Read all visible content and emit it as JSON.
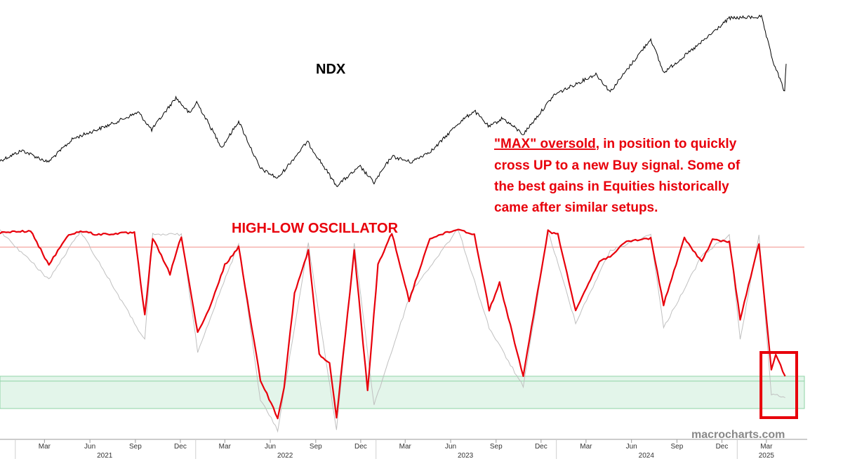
{
  "colors": {
    "ndx_line": "#000000",
    "oscillator_main": "#e8000b",
    "oscillator_secondary": "#c0c0c0",
    "overbought_line": "#f4a6a0",
    "oversold_zone_fill": "#e3f5ea",
    "oversold_zone_border": "#8fd3a6",
    "highlight_box": "#e8000b",
    "watermark": "#888888"
  },
  "chart_data": [
    {
      "type": "line",
      "title": "NDX",
      "x_range": [
        "2020-12",
        "2025-04"
      ],
      "series": [
        {
          "name": "",
          "x": [
            "2020-12-01",
            "2021-01-15",
            "2021-03-08",
            "2021-04-28",
            "2021-07-15",
            "2021-09-07",
            "2021-10-04",
            "2021-11-22",
            "2021-12-20",
            "2022-01-03",
            "2022-02-23",
            "2022-03-29",
            "2022-05-11",
            "2022-06-16",
            "2022-08-15",
            "2022-10-13",
            "2022-11-30",
            "2022-12-28",
            "2023-02-02",
            "2023-03-13",
            "2023-04-28",
            "2023-06-15",
            "2023-07-19",
            "2023-08-18",
            "2023-09-14",
            "2023-10-26",
            "2023-12-28",
            "2024-03-21",
            "2024-04-19",
            "2024-07-10",
            "2024-08-05",
            "2024-10-15",
            "2024-12-16",
            "2025-02-19",
            "2025-03-13",
            "2025-04-07",
            "2025-04-10"
          ],
          "y": [
            12400,
            13100,
            12300,
            13900,
            14900,
            15700,
            14500,
            16700,
            15600,
            16400,
            13300,
            15100,
            11900,
            11200,
            13700,
            10700,
            12000,
            10900,
            12700,
            12300,
            13200,
            14900,
            15800,
            14700,
            15300,
            14200,
            16900,
            18300,
            17100,
            20700,
            18400,
            20300,
            22100,
            22200,
            19300,
            17100,
            19000
          ]
        }
      ]
    },
    {
      "type": "line",
      "title": "HIGH-LOW OSCILLATOR",
      "x_range": [
        "2020-12",
        "2025-04"
      ],
      "series": [
        {
          "name": "",
          "x": [
            "2020-12-01",
            "2021-02-01",
            "2021-03-10",
            "2021-04-15",
            "2021-05-13",
            "2021-06-15",
            "2021-08-30",
            "2021-09-20",
            "2021-10-06",
            "2021-11-10",
            "2021-12-03",
            "2022-01-05",
            "2022-01-28",
            "2022-03-01",
            "2022-03-29",
            "2022-05-12",
            "2022-06-16",
            "2022-06-29",
            "2022-07-20",
            "2022-08-17",
            "2022-09-08",
            "2022-09-29",
            "2022-10-13",
            "2022-11-18",
            "2022-12-15",
            "2023-01-05",
            "2023-02-02",
            "2023-03-09",
            "2023-04-20",
            "2023-06-16",
            "2023-07-19",
            "2023-08-18",
            "2023-09-08",
            "2023-10-26",
            "2023-12-15",
            "2024-01-04",
            "2024-02-09",
            "2024-03-28",
            "2024-04-19",
            "2024-05-22",
            "2024-07-10",
            "2024-08-05",
            "2024-09-16",
            "2024-10-21",
            "2024-11-12",
            "2024-12-16",
            "2025-01-07",
            "2025-02-14",
            "2025-03-11",
            "2025-03-20",
            "2025-04-08"
          ],
          "y": [
            98,
            99,
            80,
            96,
            99,
            97,
            98,
            52,
            95,
            75,
            96,
            42,
            55,
            80,
            90,
            16,
            -5,
            12,
            64,
            88,
            30,
            25,
            -5,
            88,
            10,
            80,
            98,
            60,
            95,
            100,
            97,
            55,
            70,
            18,
            99,
            97,
            55,
            82,
            85,
            93,
            95,
            58,
            95,
            82,
            94,
            93,
            50,
            92,
            22,
            30,
            18
          ]
        },
        {
          "name": "",
          "x": [
            "2020-12-01",
            "2021-03-10",
            "2021-05-13",
            "2021-09-20",
            "2021-10-06",
            "2021-12-03",
            "2022-01-05",
            "2022-03-29",
            "2022-05-12",
            "2022-06-16",
            "2022-08-17",
            "2022-10-13",
            "2022-11-18",
            "2022-12-28",
            "2023-03-13",
            "2023-06-16",
            "2023-08-18",
            "2023-10-26",
            "2023-12-15",
            "2024-02-09",
            "2024-04-19",
            "2024-07-10",
            "2024-08-05",
            "2024-10-21",
            "2024-12-16",
            "2025-01-07",
            "2025-02-14",
            "2025-03-11",
            "2025-04-08"
          ],
          "y": [
            99,
            72,
            99,
            38,
            97,
            97,
            32,
            92,
            5,
            -12,
            92,
            -12,
            92,
            2,
            65,
            100,
            45,
            12,
            99,
            48,
            88,
            97,
            45,
            85,
            97,
            38,
            97,
            8,
            6
          ]
        }
      ],
      "reference_lines": {
        "overbought_level": 90,
        "oversold_zone": [
          0,
          18
        ]
      }
    }
  ],
  "x_axis": {
    "months": [
      {
        "label": "Mar",
        "date": "2021-03-01"
      },
      {
        "label": "Jun",
        "date": "2021-06-01"
      },
      {
        "label": "Sep",
        "date": "2021-09-01"
      },
      {
        "label": "Dec",
        "date": "2021-12-01"
      },
      {
        "label": "Mar",
        "date": "2022-03-01"
      },
      {
        "label": "Jun",
        "date": "2022-06-01"
      },
      {
        "label": "Sep",
        "date": "2022-09-01"
      },
      {
        "label": "Dec",
        "date": "2022-12-01"
      },
      {
        "label": "Mar",
        "date": "2023-03-01"
      },
      {
        "label": "Jun",
        "date": "2023-06-01"
      },
      {
        "label": "Sep",
        "date": "2023-09-01"
      },
      {
        "label": "Dec",
        "date": "2023-12-01"
      },
      {
        "label": "Mar",
        "date": "2024-03-01"
      },
      {
        "label": "Jun",
        "date": "2024-06-01"
      },
      {
        "label": "Sep",
        "date": "2024-09-01"
      },
      {
        "label": "Dec",
        "date": "2024-12-01"
      },
      {
        "label": "Mar",
        "date": "2025-03-01"
      }
    ],
    "years": [
      {
        "label": "2021",
        "date": "2021-07-01"
      },
      {
        "label": "2022",
        "date": "2022-07-01"
      },
      {
        "label": "2023",
        "date": "2023-07-01"
      },
      {
        "label": "2024",
        "date": "2024-07-01"
      },
      {
        "label": "2025",
        "date": "2025-03-01"
      }
    ]
  },
  "annotation": {
    "underlined": "\"MAX\" oversold",
    "line1_rest": ", in position to quickly",
    "line2": "cross UP to a new Buy signal. Some of",
    "line3": "the best gains in Equities historically",
    "line4": "came after similar setups."
  },
  "watermark": "macrocharts.com"
}
